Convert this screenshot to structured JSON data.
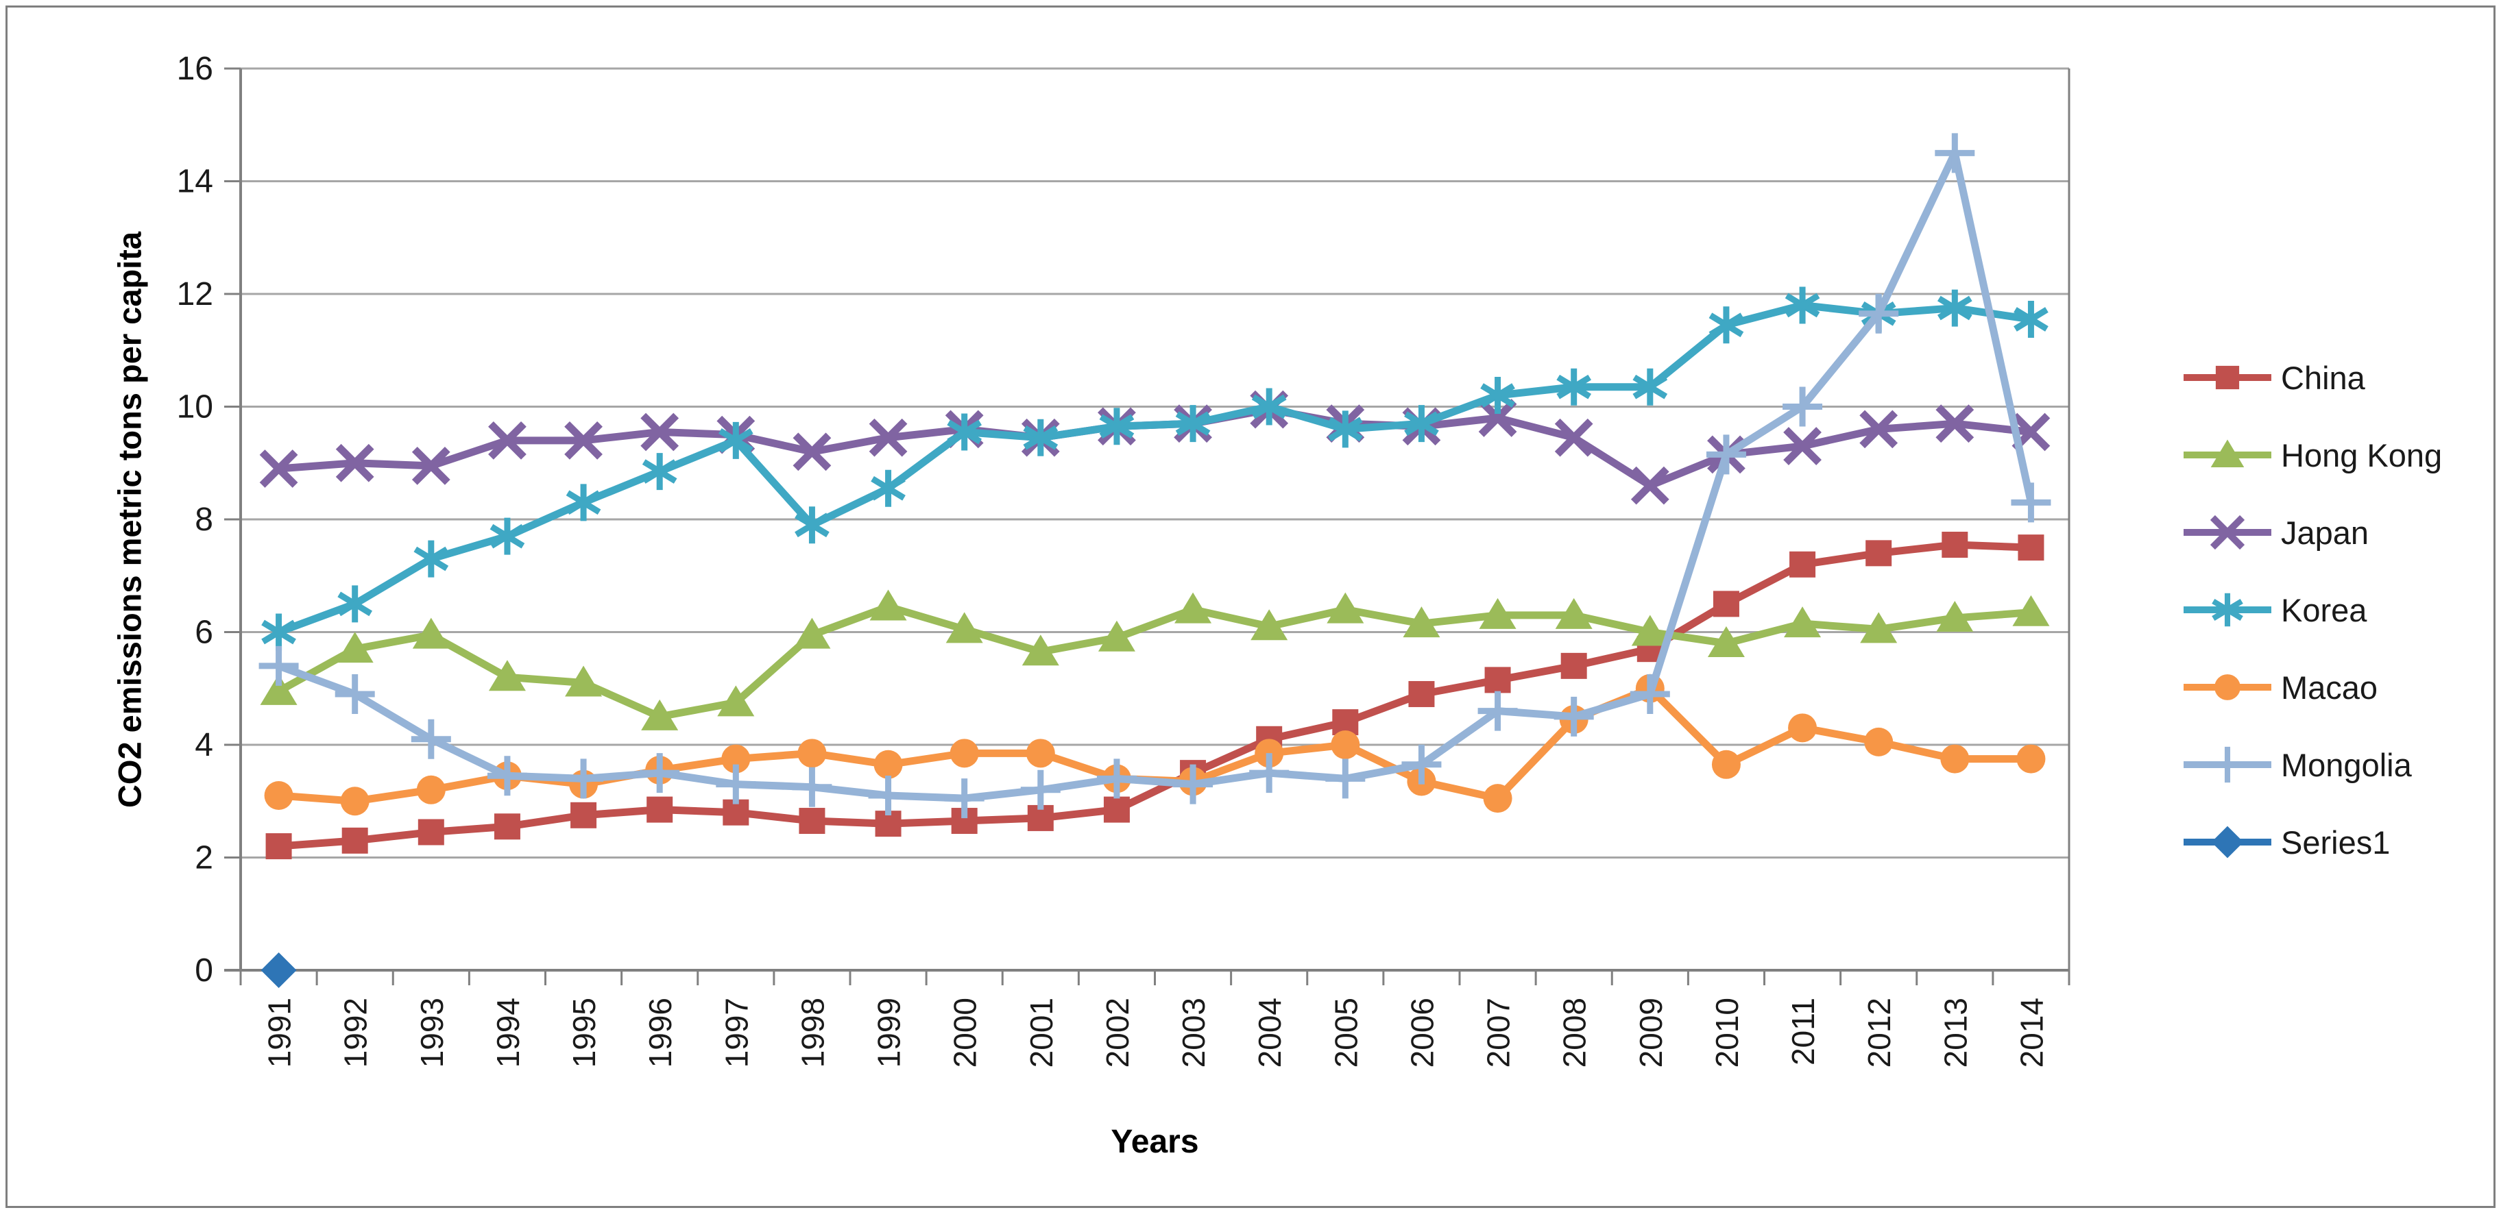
{
  "chart_data": {
    "type": "line",
    "title": "",
    "xlabel": "Years",
    "ylabel": "CO2 emissions metric tons per capita",
    "ylim": [
      0,
      16
    ],
    "yticks": [
      0,
      2,
      4,
      6,
      8,
      10,
      12,
      14,
      16
    ],
    "grid": true,
    "legend_position": "right",
    "categories": [
      "1991",
      "1992",
      "1993",
      "1994",
      "1995",
      "1996",
      "1997",
      "1998",
      "1999",
      "2000",
      "2001",
      "2002",
      "2003",
      "2004",
      "2005",
      "2006",
      "2007",
      "2008",
      "2009",
      "2010",
      "2011",
      "2012",
      "2013",
      "2014"
    ],
    "series": [
      {
        "name": "China",
        "color": "#C0504D",
        "marker": "square",
        "values": [
          2.2,
          2.3,
          2.45,
          2.55,
          2.75,
          2.85,
          2.8,
          2.65,
          2.6,
          2.65,
          2.7,
          2.85,
          3.5,
          4.1,
          4.4,
          4.9,
          5.15,
          5.4,
          5.7,
          6.5,
          7.2,
          7.4,
          7.55,
          7.5
        ]
      },
      {
        "name": "Hong Kong",
        "color": "#9BBB59",
        "marker": "triangle",
        "values": [
          4.95,
          5.7,
          5.95,
          5.2,
          5.1,
          4.5,
          4.75,
          5.95,
          6.45,
          6.05,
          5.65,
          5.9,
          6.4,
          6.1,
          6.4,
          6.15,
          6.3,
          6.3,
          6.0,
          5.8,
          6.15,
          6.05,
          6.25,
          6.35
        ]
      },
      {
        "name": "Japan",
        "color": "#8064A2",
        "marker": "x",
        "values": [
          8.9,
          9.0,
          8.95,
          9.4,
          9.4,
          9.55,
          9.5,
          9.2,
          9.45,
          9.6,
          9.45,
          9.65,
          9.7,
          9.95,
          9.7,
          9.65,
          9.8,
          9.45,
          8.6,
          9.15,
          9.3,
          9.6,
          9.7,
          9.55
        ]
      },
      {
        "name": "Korea",
        "color": "#3FA8C4",
        "marker": "asterisk",
        "values": [
          6.0,
          6.5,
          7.3,
          7.7,
          8.3,
          8.85,
          9.4,
          7.9,
          8.55,
          9.55,
          9.45,
          9.65,
          9.7,
          10.0,
          9.6,
          9.7,
          10.2,
          10.35,
          10.35,
          11.45,
          11.8,
          11.65,
          11.75,
          11.55
        ]
      },
      {
        "name": "Macao",
        "color": "#F79646",
        "marker": "circle",
        "values": [
          3.1,
          3.0,
          3.2,
          3.45,
          3.3,
          3.55,
          3.75,
          3.85,
          3.65,
          3.85,
          3.85,
          3.4,
          3.35,
          3.85,
          4.0,
          3.35,
          3.05,
          4.45,
          5.0,
          3.65,
          4.3,
          4.05,
          3.75,
          3.75
        ]
      },
      {
        "name": "Mongolia",
        "color": "#95B3D7",
        "marker": "plus",
        "values": [
          5.4,
          4.9,
          4.1,
          3.45,
          3.4,
          3.5,
          3.3,
          3.25,
          3.1,
          3.05,
          3.2,
          3.4,
          3.3,
          3.5,
          3.4,
          3.65,
          4.6,
          4.5,
          4.9,
          9.15,
          10.0,
          11.65,
          14.5,
          8.3
        ]
      },
      {
        "name": "Series1",
        "color": "#2E75B6",
        "marker": "diamond",
        "values": [
          0,
          null,
          null,
          null,
          null,
          null,
          null,
          null,
          null,
          null,
          null,
          null,
          null,
          null,
          null,
          null,
          null,
          null,
          null,
          null,
          null,
          null,
          null,
          null
        ]
      }
    ],
    "colors": {
      "gridline": "#A6A6A6",
      "axis": "#808080",
      "tick_label": "#1a1a1a"
    }
  }
}
